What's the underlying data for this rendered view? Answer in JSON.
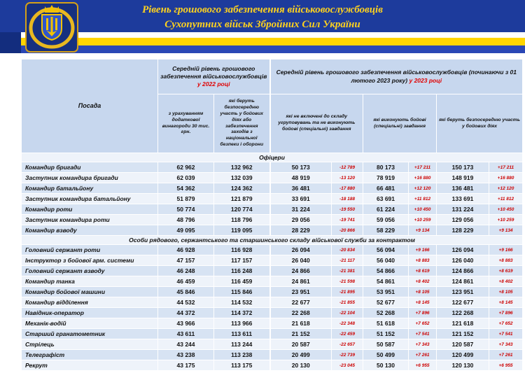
{
  "header": {
    "title_line1": "Рівень грошового забезпечення військовослужбовців",
    "title_line2": "Сухопутних військ Збройних Сил України",
    "emblem_icon": "ukraine-coat-of-arms-icon",
    "colors": {
      "banner_blue": "#1d3b9c",
      "title_yellow": "#ffd21e",
      "stripe_yellow": "#ffd500",
      "stripe_blue": "#2a47b5",
      "accent_red": "#e00000",
      "delta_red": "#cc0000",
      "header_cell_blue": "#c7d7ee",
      "row_blue": "#d7e3f3"
    }
  },
  "table": {
    "position_header": "Посада",
    "group_2022": {
      "title": "Середній рівень грошового забезпечення військовослужбовців",
      "year_highlight": "у 2022 році",
      "columns": [
        "з урахуванням додаткової винагороди 30 тис. грн.",
        "які беруть безпосередню участь у бойових діях або забезпечення заходів з національної безпеки і оборони"
      ]
    },
    "group_2023": {
      "title": "Середній рівень грошового забезпечення військовослужбовців (починаючи з 01 лютого 2023 року)",
      "year_highlight": "у 2023 році",
      "columns": [
        "які не включені до складу угруповувань та не виконують бойові (спеціальні) завдання",
        "які виконують бойові (спеціальні) завдання",
        "які беруть безпосередню участь у бойових діях"
      ]
    },
    "sections": [
      {
        "label": "Офіцери",
        "rows": [
          {
            "position": "Командир бригади",
            "pay_2022": [
              "62 962",
              "132 962"
            ],
            "pay_2023": [
              [
                "50 173",
                "-12 789"
              ],
              [
                "80 173",
                "+17 211"
              ],
              [
                "150 173",
                "+17 211"
              ]
            ]
          },
          {
            "position": "Заступник командира бригади",
            "pay_2022": [
              "62 039",
              "132 039"
            ],
            "pay_2023": [
              [
                "48 919",
                "-13 120"
              ],
              [
                "78 919",
                "+16 880"
              ],
              [
                "148 919",
                "+16 880"
              ]
            ]
          },
          {
            "position": "Командир батальйону",
            "pay_2022": [
              "54 362",
              "124 362"
            ],
            "pay_2023": [
              [
                "36 481",
                "-17 880"
              ],
              [
                "66 481",
                "+12 120"
              ],
              [
                "136 481",
                "+12 120"
              ]
            ]
          },
          {
            "position": "Заступник командира батальйону",
            "pay_2022": [
              "51 879",
              "121 879"
            ],
            "pay_2023": [
              [
                "33 691",
                "-18 188"
              ],
              [
                "63 691",
                "+11 812"
              ],
              [
                "133 691",
                "+11 812"
              ]
            ]
          },
          {
            "position": "Командир роти",
            "pay_2022": [
              "50 774",
              "120 774"
            ],
            "pay_2023": [
              [
                "31 224",
                "-19 550"
              ],
              [
                "61 224",
                "+10 450"
              ],
              [
                "131 224",
                "+10 450"
              ]
            ]
          },
          {
            "position": "Заступник командира роти",
            "pay_2022": [
              "48 796",
              "118 796"
            ],
            "pay_2023": [
              [
                "29 056",
                "-19 741"
              ],
              [
                "59 056",
                "+10 259"
              ],
              [
                "129 056",
                "+10 259"
              ]
            ]
          },
          {
            "position": "Командир взводу",
            "pay_2022": [
              "49 095",
              "119 095"
            ],
            "pay_2023": [
              [
                "28 229",
                "-20 866"
              ],
              [
                "58 229",
                "+9 134"
              ],
              [
                "128 229",
                "+9 134"
              ]
            ]
          }
        ]
      },
      {
        "label": "Особи рядового, сержантського та старшинського складу військової служби за контрактом",
        "rows": [
          {
            "position": "Головний сержант роти",
            "pay_2022": [
              "46 928",
              "116 928"
            ],
            "pay_2023": [
              [
                "26 094",
                "-20 834"
              ],
              [
                "56 094",
                "+9 166"
              ],
              [
                "126 094",
                "+9 166"
              ]
            ]
          },
          {
            "position": "Інструктор з бойової арм. системи",
            "pay_2022": [
              "47 157",
              "117 157"
            ],
            "pay_2023": [
              [
                "26 040",
                "-21 117"
              ],
              [
                "56 040",
                "+8 883"
              ],
              [
                "126 040",
                "+8 883"
              ]
            ]
          },
          {
            "position": "Головний сержант взводу",
            "pay_2022": [
              "46 248",
              "116 248"
            ],
            "pay_2023": [
              [
                "24 866",
                "-21 381"
              ],
              [
                "54 866",
                "+8 619"
              ],
              [
                "124 866",
                "+8 619"
              ]
            ]
          },
          {
            "position": "Командир танка",
            "pay_2022": [
              "46 459",
              "116 459"
            ],
            "pay_2023": [
              [
                "24 861",
                "-21 598"
              ],
              [
                "54 861",
                "+8 402"
              ],
              [
                "124 861",
                "+8 402"
              ]
            ]
          },
          {
            "position": "Командир бойової машини",
            "pay_2022": [
              "45 846",
              "115 846"
            ],
            "pay_2023": [
              [
                "23 951",
                "-21 895"
              ],
              [
                "53 951",
                "+8 105"
              ],
              [
                "123 951",
                "+8 105"
              ]
            ]
          },
          {
            "position": "Командир відділення",
            "pay_2022": [
              "44 532",
              "114 532"
            ],
            "pay_2023": [
              [
                "22 677",
                "-21 855"
              ],
              [
                "52 677",
                "+8 145"
              ],
              [
                "122 677",
                "+8 145"
              ]
            ]
          },
          {
            "position": "Навідник-оператор",
            "pay_2022": [
              "44 372",
              "114 372"
            ],
            "pay_2023": [
              [
                "22 268",
                "-22 104"
              ],
              [
                "52 268",
                "+7 896"
              ],
              [
                "122 268",
                "+7 896"
              ]
            ]
          },
          {
            "position": "Механік-водій",
            "pay_2022": [
              "43 966",
              "113 966"
            ],
            "pay_2023": [
              [
                "21 618",
                "-22 348"
              ],
              [
                "51 618",
                "+7 652"
              ],
              [
                "121 618",
                "+7 652"
              ]
            ]
          },
          {
            "position": "Старший гранатометник",
            "pay_2022": [
              "43 611",
              "113 611"
            ],
            "pay_2023": [
              [
                "21 152",
                "-22 459"
              ],
              [
                "51 152",
                "+7 541"
              ],
              [
                "121 152",
                "+7 541"
              ]
            ]
          },
          {
            "position": "Стрілець",
            "pay_2022": [
              "43 244",
              "113 244"
            ],
            "pay_2023": [
              [
                "20 587",
                "-22 657"
              ],
              [
                "50 587",
                "+7 343"
              ],
              [
                "120 587",
                "+7 343"
              ]
            ]
          },
          {
            "position": "Телеграфіст",
            "pay_2022": [
              "43 238",
              "113 238"
            ],
            "pay_2023": [
              [
                "20 499",
                "-22 739"
              ],
              [
                "50 499",
                "+7 261"
              ],
              [
                "120 499",
                "+7 261"
              ]
            ]
          },
          {
            "position": "Рекрут",
            "pay_2022": [
              "43 175",
              "113 175"
            ],
            "pay_2023": [
              [
                "20 130",
                "-23 045"
              ],
              [
                "50 130",
                "+6 955"
              ],
              [
                "120 130",
                "+6 955"
              ]
            ]
          }
        ]
      }
    ]
  }
}
